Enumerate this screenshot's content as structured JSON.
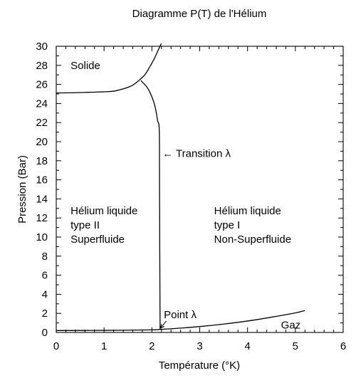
{
  "chart_data": {
    "type": "line",
    "title": "Diagramme P(T) de l'Hélium",
    "xlabel": "Température (°K)",
    "ylabel": "Pression (Bar)",
    "xlim": [
      0,
      6
    ],
    "ylim": [
      0,
      30
    ],
    "xticks": [
      0,
      1,
      2,
      3,
      4,
      5,
      6
    ],
    "yticks": [
      0,
      2,
      4,
      6,
      8,
      10,
      12,
      14,
      16,
      18,
      20,
      22,
      24,
      26,
      28,
      30
    ],
    "grid": false,
    "series": [
      {
        "id": "solid-boundary",
        "values": [
          [
            0,
            25.1
          ],
          [
            0.5,
            25.15
          ],
          [
            1.1,
            25.25
          ],
          [
            1.3,
            25.4
          ],
          [
            1.55,
            25.8
          ],
          [
            1.7,
            26.3
          ],
          [
            1.85,
            27.0
          ],
          [
            1.95,
            27.8
          ],
          [
            2.05,
            28.7
          ],
          [
            2.15,
            29.8
          ],
          [
            2.2,
            30.3
          ]
        ]
      },
      {
        "id": "lambda-line",
        "values": [
          [
            1.77,
            26.4
          ],
          [
            1.9,
            25.7
          ],
          [
            2.0,
            24.7
          ],
          [
            2.07,
            23.6
          ],
          [
            2.12,
            22.2
          ],
          [
            2.155,
            21.1
          ],
          [
            2.16,
            15.0
          ],
          [
            2.165,
            8.0
          ],
          [
            2.17,
            2.0
          ],
          [
            2.172,
            0.3
          ]
        ]
      },
      {
        "id": "vapor-curve",
        "values": [
          [
            0,
            0.2
          ],
          [
            1.0,
            0.22
          ],
          [
            2.0,
            0.27
          ],
          [
            2.17,
            0.32
          ],
          [
            2.5,
            0.42
          ],
          [
            3.0,
            0.62
          ],
          [
            3.5,
            0.88
          ],
          [
            4.0,
            1.2
          ],
          [
            4.5,
            1.6
          ],
          [
            5.0,
            2.05
          ],
          [
            5.2,
            2.3
          ]
        ]
      }
    ],
    "annotations": [
      {
        "id": "solide",
        "text": "Solide",
        "x": 0.3,
        "y": 27.6,
        "align": "start"
      },
      {
        "id": "transition",
        "text": "← Transition  λ",
        "x": 2.22,
        "y": 18.4,
        "align": "start"
      },
      {
        "id": "helium-II-1",
        "text": "Hélium liquide",
        "x": 0.3,
        "y": 12.4,
        "align": "start"
      },
      {
        "id": "helium-II-2",
        "text": "type II",
        "x": 0.3,
        "y": 10.9,
        "align": "start"
      },
      {
        "id": "helium-II-3",
        "text": "Superfluide",
        "x": 0.3,
        "y": 9.4,
        "align": "start"
      },
      {
        "id": "helium-I-1",
        "text": "Hélium liquide",
        "x": 3.3,
        "y": 12.4,
        "align": "start"
      },
      {
        "id": "helium-I-2",
        "text": "type I",
        "x": 3.3,
        "y": 10.9,
        "align": "start"
      },
      {
        "id": "helium-I-3",
        "text": "Non-Superfluide",
        "x": 3.3,
        "y": 9.4,
        "align": "start"
      },
      {
        "id": "point-lambda",
        "text": "Point λ",
        "x": 2.25,
        "y": 1.5,
        "align": "start"
      },
      {
        "id": "gaz",
        "text": "Gaz",
        "x": 4.7,
        "y": 0.4,
        "align": "start"
      }
    ],
    "arrows": [
      {
        "id": "point-lambda-arrow",
        "from": [
          2.3,
          1.2
        ],
        "to": [
          2.18,
          0.45
        ]
      }
    ]
  }
}
